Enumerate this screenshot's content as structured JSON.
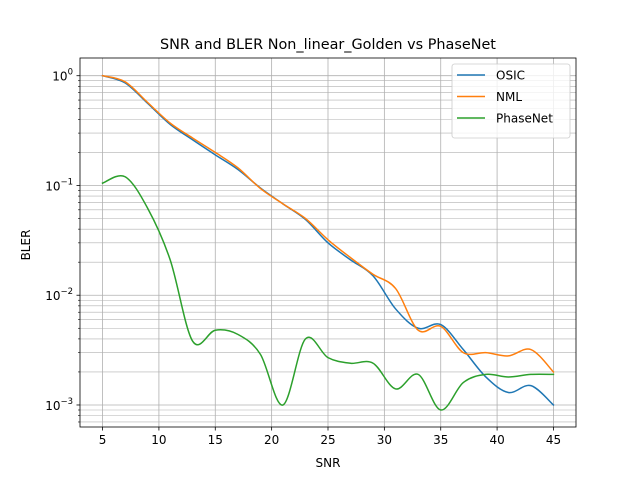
{
  "chart_data": {
    "type": "line",
    "title": "SNR and BLER Non_linear_Golden vs PhaseNet",
    "xlabel": "SNR",
    "ylabel": "BLER",
    "xlim": [
      3,
      47
    ],
    "ylim": [
      0.00063,
      1.45
    ],
    "yscale": "log",
    "grid": true,
    "legend_position": "upper-right",
    "x_ticks": [
      5,
      10,
      15,
      20,
      25,
      30,
      35,
      40,
      45
    ],
    "y_ticks": [
      {
        "value": 1,
        "base": "10",
        "exp": "0"
      },
      {
        "value": 0.1,
        "base": "10",
        "exp": "−1"
      },
      {
        "value": 0.01,
        "base": "10",
        "exp": "−2"
      },
      {
        "value": 0.001,
        "base": "10",
        "exp": "−3"
      }
    ],
    "x": [
      5,
      7,
      9,
      11,
      13,
      15,
      17,
      19,
      21,
      23,
      25,
      27,
      29,
      31,
      33,
      35,
      37,
      39,
      41,
      43,
      45
    ],
    "series": [
      {
        "name": "OSIC",
        "color": "#1f77b4",
        "values": [
          1.0,
          0.86,
          0.56,
          0.36,
          0.26,
          0.19,
          0.14,
          0.095,
          0.068,
          0.049,
          0.03,
          0.021,
          0.015,
          0.0075,
          0.005,
          0.0054,
          0.0032,
          0.0018,
          0.0013,
          0.0015,
          0.001
        ]
      },
      {
        "name": "NML",
        "color": "#ff7f0e",
        "values": [
          1.0,
          0.88,
          0.57,
          0.37,
          0.27,
          0.2,
          0.145,
          0.094,
          0.068,
          0.05,
          0.032,
          0.022,
          0.0155,
          0.0115,
          0.0048,
          0.0052,
          0.003,
          0.003,
          0.0028,
          0.0032,
          0.002
        ]
      },
      {
        "name": "PhaseNet",
        "color": "#2ca02c",
        "values": [
          0.105,
          0.12,
          0.062,
          0.021,
          0.0038,
          0.0048,
          0.0044,
          0.0029,
          0.001,
          0.004,
          0.0027,
          0.0024,
          0.0024,
          0.0014,
          0.0019,
          0.0009,
          0.0016,
          0.0019,
          0.0018,
          0.0019,
          0.0019
        ]
      }
    ]
  }
}
